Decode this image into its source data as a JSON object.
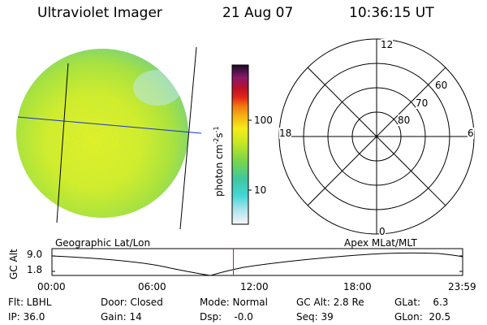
{
  "header": {
    "instrument": "Ultraviolet Imager",
    "date": "21 Aug 07",
    "time": "10:36:15 UT"
  },
  "image": {
    "caption": "Geographic Lat/Lon"
  },
  "colorbar": {
    "unit_label": "photon cm",
    "unit_exp1": "-2",
    "unit_s": "s",
    "unit_exp2": "-1",
    "tick_100": "100",
    "tick_10": "10"
  },
  "polar": {
    "caption": "Apex  MLat/MLT",
    "mlt_labels": {
      "top": "12",
      "right": "6",
      "bottom": "0",
      "left": "18"
    },
    "lat_labels": [
      "60",
      "70",
      "80"
    ]
  },
  "altplot": {
    "ylabel": "GC Alt",
    "ymax": "9.0",
    "ymin": "1.8",
    "xticks": [
      "00:00",
      "06:00",
      "12:00",
      "18:00",
      "23:59"
    ],
    "marker_time_fraction": 0.4418
  },
  "info": {
    "flt": "Flt: LBHL",
    "ip": "IP: 36.0",
    "door": "Door: Closed",
    "gain": "Gain: 14",
    "mode": "Mode: Normal",
    "dsp": "Dsp:    -0.0",
    "gcalt": "GC Alt: 2.8 Re",
    "seq": "Seq: 39",
    "glat": "GLat:    6.3",
    "glon": "GLon:  20.5"
  },
  "colors": {
    "grid_blue": "#1a2fd0",
    "marker_red": "#b22222"
  }
}
